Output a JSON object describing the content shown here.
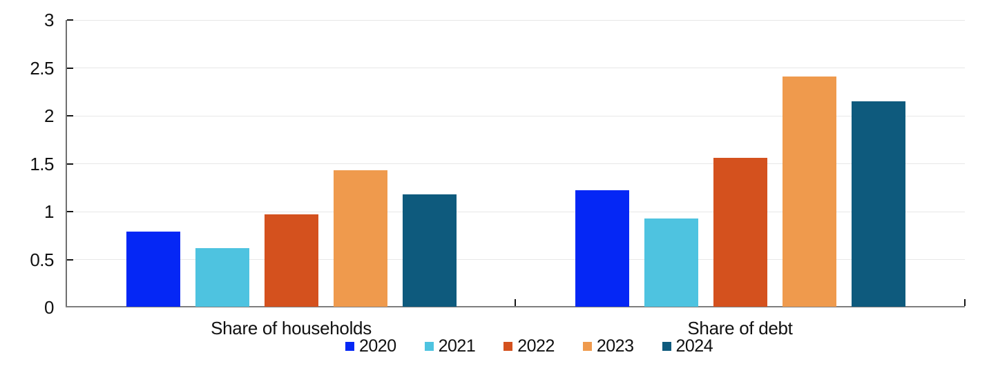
{
  "chart_data": {
    "type": "bar",
    "categories": [
      "Share of households",
      "Share of debt"
    ],
    "series": [
      {
        "name": "2020",
        "color": "#0527f5",
        "values": [
          0.79,
          1.22
        ]
      },
      {
        "name": "2021",
        "color": "#4ec3e0",
        "values": [
          0.62,
          0.93
        ]
      },
      {
        "name": "2022",
        "color": "#d4511e",
        "values": [
          0.97,
          1.56
        ]
      },
      {
        "name": "2023",
        "color": "#ef9a4d",
        "values": [
          1.43,
          2.41
        ]
      },
      {
        "name": "2024",
        "color": "#0e5a7d",
        "values": [
          1.18,
          2.15
        ]
      }
    ],
    "title": "",
    "xlabel": "",
    "ylabel": "",
    "ylim": [
      0,
      3
    ],
    "ytick_step": 0.5,
    "ytick_labels": [
      "0",
      "0.5",
      "1",
      "1.5",
      "2",
      "2.5",
      "3"
    ],
    "grid": true,
    "legend_position": "bottom"
  }
}
